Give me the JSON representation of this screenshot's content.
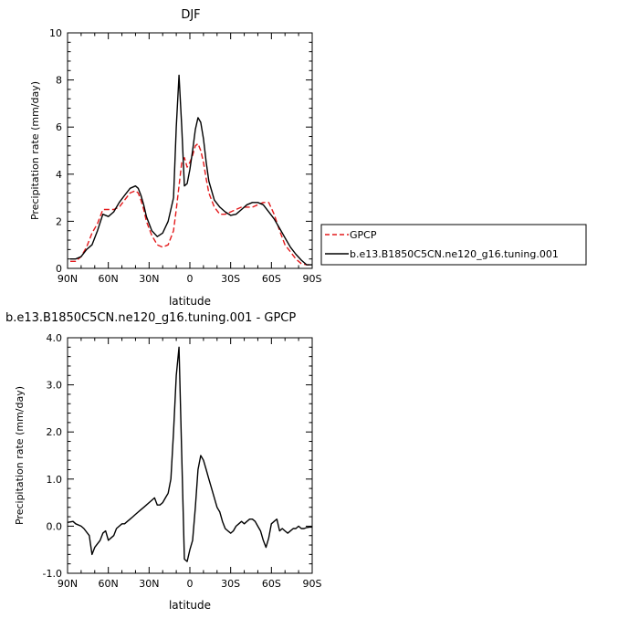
{
  "chart_data": [
    {
      "type": "line",
      "title": "DJF",
      "xlabel": "latitude",
      "ylabel": "Precipitation rate (mm/day)",
      "x_ticks": [
        "90N",
        "60N",
        "30N",
        "0",
        "30S",
        "60S",
        "90S"
      ],
      "x_tick_values": [
        -90,
        -60,
        -30,
        0,
        30,
        60,
        90
      ],
      "xlim": [
        -90,
        90
      ],
      "ylim": [
        0,
        10
      ],
      "y_ticks": [
        "0",
        "2",
        "4",
        "6",
        "8",
        "10"
      ],
      "y_tick_values": [
        0,
        2,
        4,
        6,
        8,
        10
      ],
      "legend_position": "right",
      "series": [
        {
          "name": "GPCP",
          "color": "#e41a1c",
          "style": "dashed",
          "x": [
            -88,
            -84,
            -80,
            -76,
            -72,
            -68,
            -64,
            -60,
            -56,
            -52,
            -48,
            -44,
            -40,
            -38,
            -36,
            -34,
            -32,
            -28,
            -24,
            -20,
            -16,
            -12,
            -10,
            -8,
            -6,
            -4,
            -2,
            0,
            2,
            4,
            6,
            8,
            10,
            12,
            14,
            18,
            22,
            26,
            30,
            34,
            38,
            42,
            46,
            50,
            54,
            58,
            62,
            66,
            70,
            74,
            78,
            82,
            86,
            90
          ],
          "y": [
            0.3,
            0.3,
            0.5,
            0.9,
            1.5,
            1.9,
            2.5,
            2.5,
            2.5,
            2.6,
            2.9,
            3.2,
            3.3,
            3.2,
            2.9,
            2.5,
            2.0,
            1.4,
            1.0,
            0.9,
            1.0,
            1.6,
            2.5,
            3.5,
            4.5,
            4.7,
            4.3,
            4.5,
            4.8,
            5.2,
            5.3,
            5.0,
            4.5,
            3.8,
            3.2,
            2.6,
            2.3,
            2.3,
            2.4,
            2.5,
            2.6,
            2.6,
            2.6,
            2.7,
            2.8,
            2.8,
            2.3,
            1.6,
            1.0,
            0.7,
            0.4,
            0.2,
            0.15,
            0.15
          ]
        },
        {
          "name": "b.e13.B1850C5CN.ne120_g16.tuning.001",
          "color": "#000000",
          "style": "solid",
          "x": [
            -88,
            -84,
            -80,
            -76,
            -72,
            -68,
            -64,
            -60,
            -56,
            -52,
            -48,
            -44,
            -40,
            -38,
            -36,
            -34,
            -32,
            -28,
            -24,
            -20,
            -16,
            -12,
            -10,
            -8,
            -6,
            -4,
            -2,
            0,
            2,
            4,
            6,
            8,
            10,
            12,
            14,
            18,
            22,
            26,
            30,
            34,
            38,
            42,
            46,
            50,
            54,
            58,
            62,
            66,
            70,
            74,
            78,
            82,
            86,
            90
          ],
          "y": [
            0.4,
            0.4,
            0.5,
            0.8,
            1.0,
            1.6,
            2.3,
            2.2,
            2.4,
            2.8,
            3.1,
            3.4,
            3.5,
            3.4,
            3.1,
            2.7,
            2.2,
            1.6,
            1.35,
            1.5,
            2.0,
            3.0,
            6.0,
            8.2,
            6.0,
            3.5,
            3.6,
            4.2,
            5.0,
            5.9,
            6.4,
            6.2,
            5.5,
            4.5,
            3.7,
            2.9,
            2.6,
            2.4,
            2.25,
            2.3,
            2.5,
            2.7,
            2.8,
            2.8,
            2.7,
            2.4,
            2.1,
            1.7,
            1.3,
            0.9,
            0.6,
            0.35,
            0.15,
            0.15
          ]
        }
      ]
    },
    {
      "type": "line",
      "title": "b.e13.B1850C5CN.ne120_g16.tuning.001 - GPCP",
      "xlabel": "latitude",
      "ylabel": "Precipitation rate (mm/day)",
      "x_ticks": [
        "90N",
        "60N",
        "30N",
        "0",
        "30S",
        "60S",
        "90S"
      ],
      "x_tick_values": [
        -90,
        -60,
        -30,
        0,
        30,
        60,
        90
      ],
      "xlim": [
        -90,
        90
      ],
      "ylim": [
        -1,
        4
      ],
      "y_ticks": [
        "-1.0",
        "0.0",
        "1.0",
        "2.0",
        "3.0",
        "4.0"
      ],
      "y_tick_values": [
        -1,
        0,
        1,
        2,
        3,
        4
      ],
      "series": [
        {
          "color": "#000000",
          "style": "solid",
          "x": [
            -90,
            -86,
            -84,
            -80,
            -78,
            -74,
            -72,
            -70,
            -66,
            -64,
            -62,
            -60,
            -58,
            -56,
            -54,
            -52,
            -50,
            -48,
            -46,
            -44,
            -42,
            -40,
            -38,
            -36,
            -34,
            -32,
            -30,
            -28,
            -26,
            -24,
            -22,
            -20,
            -18,
            -16,
            -14,
            -12,
            -10,
            -9,
            -8,
            -6,
            -4,
            -2,
            0,
            2,
            4,
            6,
            8,
            10,
            12,
            14,
            16,
            18,
            20,
            22,
            24,
            26,
            28,
            30,
            32,
            34,
            36,
            38,
            40,
            42,
            44,
            46,
            48,
            50,
            52,
            54,
            56,
            58,
            60,
            62,
            64,
            66,
            68,
            70,
            72,
            74,
            76,
            78,
            80,
            82,
            84,
            86,
            88,
            90
          ],
          "y": [
            0.08,
            0.1,
            0.05,
            0.0,
            -0.05,
            -0.2,
            -0.6,
            -0.45,
            -0.3,
            -0.15,
            -0.1,
            -0.3,
            -0.25,
            -0.2,
            -0.05,
            0.0,
            0.05,
            0.05,
            0.1,
            0.15,
            0.2,
            0.25,
            0.3,
            0.35,
            0.4,
            0.45,
            0.5,
            0.55,
            0.6,
            0.45,
            0.45,
            0.5,
            0.6,
            0.7,
            1.0,
            2.0,
            3.2,
            3.5,
            3.8,
            1.5,
            -0.7,
            -0.75,
            -0.5,
            -0.3,
            0.4,
            1.2,
            1.5,
            1.4,
            1.2,
            1.0,
            0.8,
            0.6,
            0.4,
            0.3,
            0.1,
            -0.05,
            -0.1,
            -0.15,
            -0.1,
            0.0,
            0.05,
            0.1,
            0.05,
            0.1,
            0.15,
            0.15,
            0.1,
            0.0,
            -0.1,
            -0.3,
            -0.45,
            -0.25,
            0.05,
            0.1,
            0.15,
            -0.1,
            -0.05,
            -0.1,
            -0.15,
            -0.1,
            -0.05,
            -0.05,
            0.0,
            -0.05,
            -0.05,
            -0.03,
            -0.02,
            -0.02
          ]
        }
      ]
    }
  ]
}
